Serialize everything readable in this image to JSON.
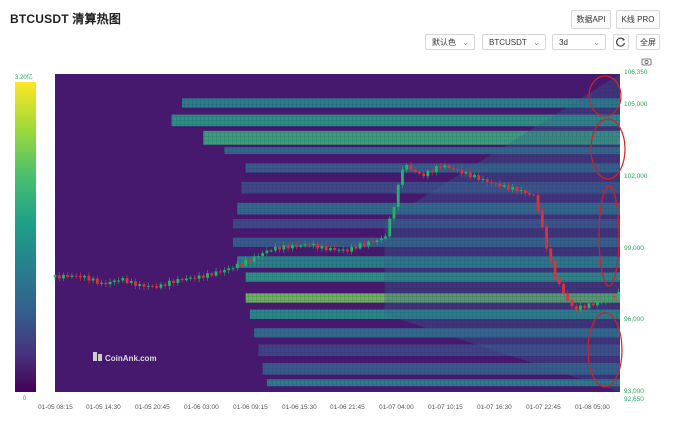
{
  "title": "BTCUSDT 清算热图",
  "toolbar": {
    "api_label": "数据API",
    "kline_label": "K线 PRO"
  },
  "controls": {
    "color_scheme": "默认色",
    "symbol": "BTCUSDT",
    "period": "3d",
    "fullscreen": "全屏"
  },
  "colorbar": {
    "max_label": "3.20亿",
    "min_label": "0"
  },
  "watermark": "CoinAnk.com",
  "chart_data": {
    "type": "heatmap",
    "y_ticks": [
      "106,350",
      "105,000",
      "102,000",
      "99,000",
      "96,000",
      "93,000",
      "92,650"
    ],
    "x_ticks": [
      "01-05 08:15",
      "01-05 14:30",
      "01-05 20:45",
      "01-06 03:00",
      "01-06 09:15",
      "01-06 15:30",
      "01-06 21:45",
      "01-07 04:00",
      "01-07 10:15",
      "01-07 16:30",
      "01-07 22:45",
      "01-08 05:00"
    ],
    "ylim": [
      92650,
      106350
    ],
    "price_path": [
      [
        0,
        97600
      ],
      [
        6,
        97500
      ],
      [
        10,
        97300
      ],
      [
        14,
        97650
      ],
      [
        18,
        97300
      ],
      [
        22,
        97100
      ],
      [
        26,
        97350
      ],
      [
        30,
        97600
      ],
      [
        34,
        97900
      ],
      [
        38,
        98100
      ],
      [
        42,
        98300
      ],
      [
        46,
        98700
      ],
      [
        50,
        98950
      ],
      [
        54,
        99150
      ],
      [
        58,
        98850
      ],
      [
        62,
        98650
      ],
      [
        66,
        98950
      ],
      [
        70,
        99300
      ],
      [
        72,
        100800
      ],
      [
        74,
        102600
      ],
      [
        78,
        102000
      ],
      [
        82,
        102300
      ],
      [
        86,
        102050
      ],
      [
        90,
        101900
      ],
      [
        94,
        101700
      ],
      [
        98,
        101400
      ],
      [
        102,
        100950
      ],
      [
        104,
        99100
      ],
      [
        106,
        97600
      ],
      [
        108,
        96900
      ],
      [
        110,
        96300
      ],
      [
        114,
        96550
      ],
      [
        118,
        96750
      ],
      [
        120,
        96850
      ]
    ]
  }
}
